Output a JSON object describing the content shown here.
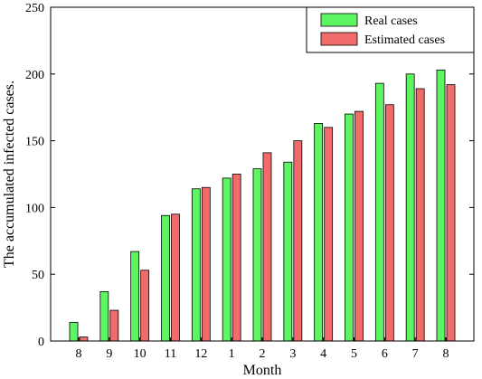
{
  "chart_data": {
    "type": "bar",
    "title": "",
    "xlabel": "Month",
    "ylabel": "The accumulated infected cases.",
    "ylim": [
      0,
      250
    ],
    "yticks": [
      0,
      50,
      100,
      150,
      200,
      250
    ],
    "categories": [
      "8",
      "9",
      "10",
      "11",
      "12",
      "1",
      "2",
      "3",
      "4",
      "5",
      "6",
      "7",
      "8"
    ],
    "series": [
      {
        "name": "Real cases",
        "color": "#5ef563",
        "values": [
          14,
          37,
          67,
          94,
          114,
          122,
          129,
          134,
          163,
          170,
          193,
          200,
          203
        ]
      },
      {
        "name": "Estimated cases",
        "color": "#f26b6b",
        "values": [
          3,
          23,
          53,
          95,
          115,
          125,
          141,
          150,
          160,
          172,
          177,
          189,
          192
        ]
      }
    ],
    "legend_position": "top-right",
    "grid": false
  }
}
